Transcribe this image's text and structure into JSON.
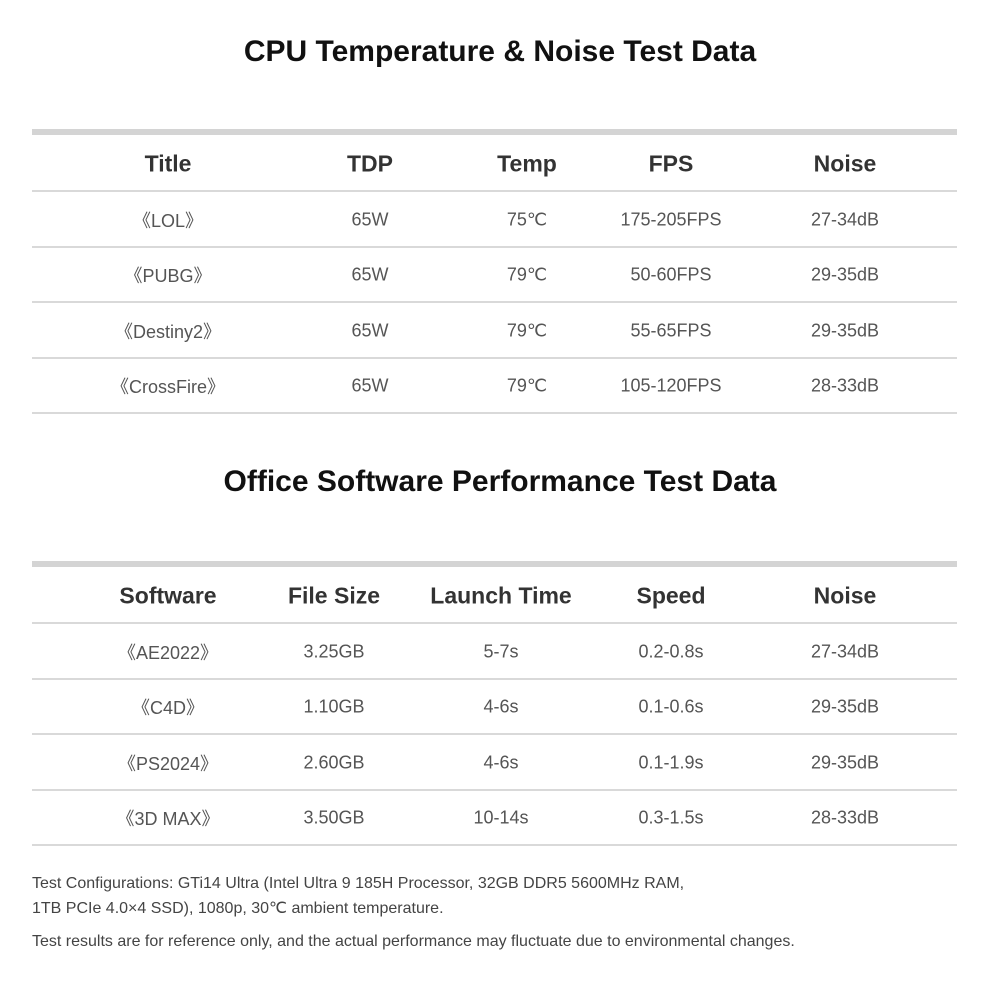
{
  "sections": [
    {
      "title": "CPU Temperature & Noise Test Data",
      "columns": [
        "Title",
        "TDP",
        "Temp",
        "FPS",
        "Noise"
      ],
      "rows": [
        [
          "《LOL》",
          "65W",
          "75℃",
          "175-205FPS",
          "27-34dB"
        ],
        [
          "《PUBG》",
          "65W",
          "79℃",
          "50-60FPS",
          "29-35dB"
        ],
        [
          "《Destiny2》",
          "65W",
          "79℃",
          "55-65FPS",
          "29-35dB"
        ],
        [
          "《CrossFire》",
          "65W",
          "79℃",
          "105-120FPS",
          "28-33dB"
        ]
      ]
    },
    {
      "title": "Office Software Performance Test Data",
      "columns": [
        "Software",
        "File Size",
        "Launch Time",
        "Speed",
        "Noise"
      ],
      "rows": [
        [
          "《AE2022》",
          "3.25GB",
          "5-7s",
          "0.2-0.8s",
          "27-34dB"
        ],
        [
          "《C4D》",
          "1.10GB",
          "4-6s",
          "0.1-0.6s",
          "29-35dB"
        ],
        [
          "《PS2024》",
          "2.60GB",
          "4-6s",
          "0.1-1.9s",
          "29-35dB"
        ],
        [
          "《3D MAX》",
          "3.50GB",
          "10-14s",
          "0.3-1.5s",
          "28-33dB"
        ]
      ]
    }
  ],
  "notes": [
    "Test Configurations: GTi14 Ultra (Intel Ultra 9 185H Processor, 32GB DDR5 5600MHz RAM,",
    "1TB PCIe 4.0×4 SSD), 1080p, 30℃ ambient temperature.",
    "Test results are for reference only, and the actual performance may fluctuate due to environmental changes."
  ]
}
